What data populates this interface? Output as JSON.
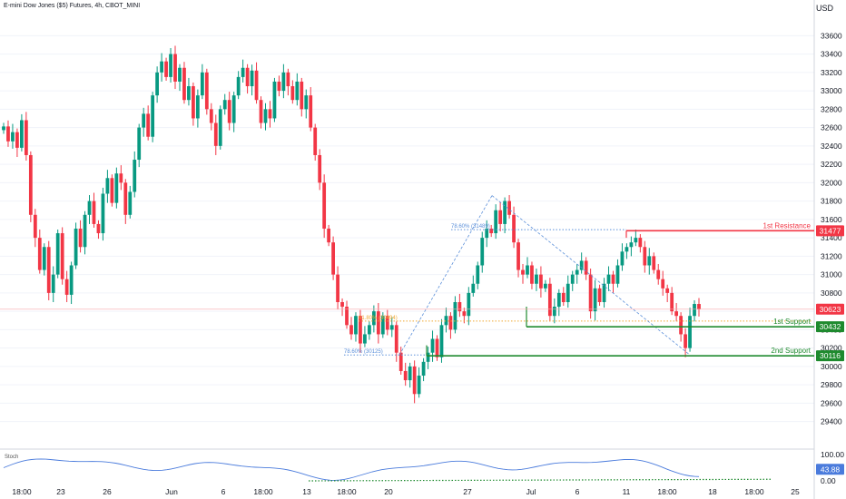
{
  "header": {
    "title": "E-mini Dow Jones ($5) Futures, 4h, CBOT_MINI",
    "currency": "USD"
  },
  "colors": {
    "up": "#26a69a",
    "up_candle": "#089981",
    "down_candle": "#f23645",
    "support": "#1e8a2e",
    "resistance": "#f23645",
    "fib": "#5b8fd9",
    "stoch": "#4a7bdc",
    "grid": "#f0f3fa",
    "axis_text": "#131722"
  },
  "chart_data": {
    "type": "candlestick",
    "symbol": "E-mini Dow Jones ($5) Futures",
    "interval": "4h",
    "exchange": "CBOT_MINI",
    "y_axis": {
      "ticks": [
        29400,
        29600,
        29800,
        30000,
        30200,
        30400,
        30600,
        30800,
        31000,
        31200,
        31400,
        31600,
        31800,
        32000,
        32200,
        32400,
        32600,
        32800,
        33000,
        33200,
        33400,
        33600
      ],
      "range": [
        29130,
        33850
      ],
      "unit": "USD"
    },
    "x_axis": {
      "tick_labels": [
        "18:00",
        "23",
        "26",
        "Jun",
        "6",
        "18:00",
        "13",
        "18:00",
        "20",
        "27",
        "Jul",
        "6",
        "11",
        "18:00",
        "18",
        "18:00",
        "25"
      ]
    },
    "price_badges": [
      {
        "label": "31477",
        "value": 31477,
        "kind": "resistance"
      },
      {
        "label": "30623",
        "value": 30623,
        "kind": "last"
      },
      {
        "label": "30432",
        "value": 30432,
        "kind": "support"
      },
      {
        "label": "30116",
        "value": 30116,
        "kind": "support"
      }
    ],
    "levels": [
      {
        "name": "1st Resistance",
        "value": 31477,
        "color": "#f23645"
      },
      {
        "name": "1st Support",
        "value": 30432,
        "color": "#1e8a2e"
      },
      {
        "name": "2nd Support",
        "value": 30116,
        "color": "#1e8a2e"
      }
    ],
    "fib_labels": [
      {
        "text": "78.60% (31489)",
        "value": 31489
      },
      {
        "text": "61.80% (30494)",
        "value": 30494
      },
      {
        "text": "78.60% (30125)",
        "value": 30125
      }
    ],
    "closes": [
      32612,
      32450,
      32550,
      32380,
      32680,
      32300,
      31650,
      31400,
      31050,
      31300,
      30800,
      31000,
      31450,
      30950,
      30780,
      31100,
      31500,
      31300,
      31650,
      31800,
      31550,
      31450,
      31880,
      32050,
      31780,
      32100,
      32000,
      31650,
      31900,
      32250,
      32600,
      32750,
      32500,
      32950,
      33200,
      33320,
      33150,
      33400,
      33100,
      33250,
      32900,
      33050,
      32700,
      32950,
      33200,
      32800,
      32650,
      32400,
      32800,
      32900,
      32650,
      32950,
      33150,
      33250,
      33050,
      33220,
      32900,
      32650,
      32800,
      32700,
      33100,
      33000,
      33200,
      33050,
      32900,
      33100,
      32800,
      32950,
      32600,
      32300,
      32000,
      31500,
      31350,
      31000,
      30700,
      30650,
      30450,
      30350,
      30550,
      30250,
      30350,
      30450,
      30600,
      30350,
      30550,
      30400,
      30450,
      30150,
      29950,
      29850,
      30000,
      29700,
      29900,
      30050,
      30150,
      30300,
      30100,
      30450,
      30550,
      30400,
      30700,
      30600,
      30550,
      30800,
      30900,
      31100,
      31400,
      31500,
      31450,
      31700,
      31550,
      31800,
      31650,
      31350,
      31050,
      31000,
      31100,
      30900,
      31000,
      30850,
      30900,
      30550,
      30650,
      30800,
      30700,
      30900,
      31000,
      31050,
      31150,
      31000,
      30600,
      30850,
      30700,
      30900,
      31000,
      30900,
      31100,
      31250,
      31300,
      31350,
      31400,
      31300,
      31100,
      31200,
      31050,
      30950,
      30850,
      30800,
      30600,
      30550,
      30350,
      30200,
      30550,
      30680,
      30623
    ],
    "stochastic": {
      "name": "Stoch",
      "axis_labels": [
        "100.00",
        "50.00",
        "0.00"
      ],
      "value_label": "43.88",
      "value": 43.88
    }
  }
}
